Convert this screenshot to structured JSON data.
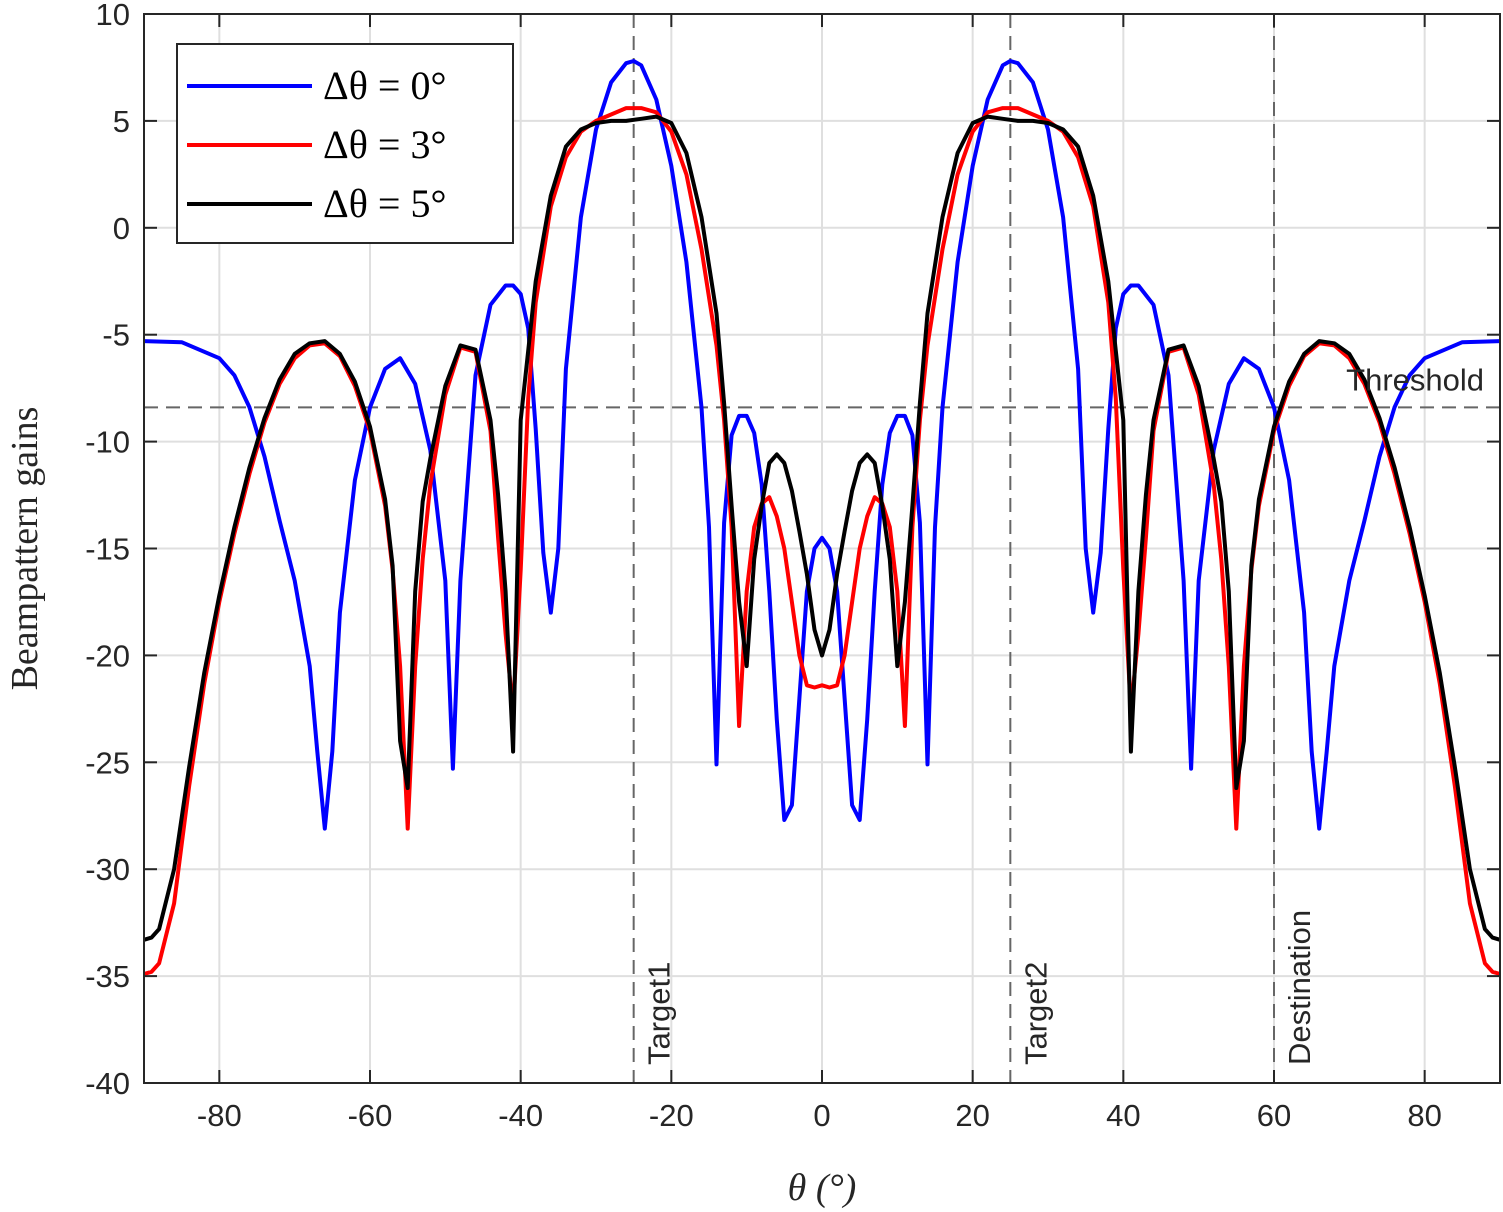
{
  "chart_data": {
    "type": "line",
    "title": "",
    "xlabel": "θ (°)",
    "ylabel": "Beampattern gains",
    "xlim": [
      -90,
      90
    ],
    "ylim": [
      -40,
      10
    ],
    "xticks": [
      -80,
      -60,
      -40,
      -20,
      0,
      20,
      40,
      60,
      80
    ],
    "xtick_labels": [
      "-80",
      "-60",
      "-40",
      "-20",
      "0",
      "20",
      "40",
      "60",
      "80"
    ],
    "yticks": [
      -40,
      -35,
      -30,
      -25,
      -20,
      -15,
      -10,
      -5,
      0,
      5,
      10
    ],
    "ytick_labels": [
      "-40",
      "-35",
      "-30",
      "-25",
      "-20",
      "-15",
      "-10",
      "-5",
      "0",
      "5",
      "10"
    ],
    "grid": true,
    "legend_position": "top-left",
    "threshold": {
      "y": -8.4,
      "label": "Threshold"
    },
    "vlines": [
      {
        "x": -25,
        "label": "Target1"
      },
      {
        "x": 25,
        "label": "Target2"
      },
      {
        "x": 60,
        "label": "Destination"
      }
    ],
    "series": [
      {
        "name": "Δθ = 0°",
        "color": "#0000ff",
        "x": [
          -90,
          -85,
          -80,
          -78,
          -76,
          -74,
          -72,
          -70,
          -68,
          -67,
          -66,
          -65,
          -64,
          -62,
          -60,
          -58,
          -56,
          -54,
          -52,
          -50,
          -49,
          -48,
          -46,
          -44,
          -42,
          -41,
          -40,
          -39,
          -38,
          -37,
          -36,
          -35,
          -34,
          -32,
          -30,
          -28,
          -26,
          -25,
          -24,
          -22,
          -20,
          -18,
          -16,
          -15,
          -14,
          -13,
          -12,
          -11,
          -10,
          -9,
          -8,
          -7,
          -6,
          -5,
          -4,
          -3,
          -2,
          -1,
          0,
          1,
          2,
          3,
          4,
          5,
          6,
          7,
          8,
          9,
          10,
          11,
          12,
          13,
          14,
          15,
          16,
          18,
          20,
          22,
          24,
          25,
          26,
          28,
          30,
          32,
          34,
          35,
          36,
          37,
          38,
          39,
          40,
          41,
          42,
          44,
          46,
          48,
          49,
          50,
          52,
          54,
          56,
          58,
          60,
          62,
          64,
          65,
          66,
          67,
          68,
          70,
          72,
          74,
          76,
          78,
          80,
          85,
          90
        ],
        "values": [
          -5.3,
          -5.35,
          -6.1,
          -6.9,
          -8.4,
          -10.7,
          -13.7,
          -16.5,
          -20.5,
          -24.5,
          -28.1,
          -24.5,
          -18,
          -11.8,
          -8.4,
          -6.6,
          -6.1,
          -7.3,
          -10.4,
          -16.5,
          -25.3,
          -16.5,
          -6.9,
          -3.6,
          -2.7,
          -2.7,
          -3.1,
          -4.7,
          -9.4,
          -15.2,
          -18,
          -15,
          -6.6,
          0.5,
          4.6,
          6.8,
          7.7,
          7.8,
          7.6,
          6,
          2.9,
          -1.6,
          -8.4,
          -14,
          -25.1,
          -13.8,
          -9.7,
          -8.8,
          -8.8,
          -9.6,
          -12,
          -17,
          -23,
          -27.7,
          -27,
          -22,
          -17,
          -15,
          -14.5,
          -15,
          -17,
          -22,
          -27,
          -27.7,
          -23,
          -17,
          -12,
          -9.6,
          -8.8,
          -8.8,
          -9.7,
          -13.8,
          -25.1,
          -14,
          -8.4,
          -1.6,
          2.9,
          6,
          7.6,
          7.8,
          7.7,
          6.8,
          4.6,
          0.5,
          -6.6,
          -15,
          -18,
          -15.2,
          -9.4,
          -4.7,
          -3.1,
          -2.7,
          -2.7,
          -3.6,
          -6.9,
          -16.5,
          -25.3,
          -16.5,
          -10.4,
          -7.3,
          -6.1,
          -6.6,
          -8.4,
          -11.8,
          -18,
          -24.5,
          -28.1,
          -24.5,
          -20.5,
          -16.5,
          -13.7,
          -10.7,
          -8.4,
          -6.9,
          -6.1,
          -5.35,
          -5.3
        ]
      },
      {
        "name": "Δθ = 3°",
        "color": "#ff0000",
        "x": [
          -90,
          -89,
          -88,
          -86,
          -84,
          -82,
          -80,
          -78,
          -76,
          -74,
          -72,
          -70,
          -68,
          -66,
          -64,
          -62,
          -60,
          -58,
          -57,
          -56,
          -55,
          -54,
          -53,
          -52,
          -50,
          -48,
          -46,
          -44,
          -43,
          -42,
          -41,
          -40,
          -39,
          -38,
          -36,
          -34,
          -32,
          -30,
          -28,
          -26,
          -24,
          -22,
          -20,
          -18,
          -16,
          -14,
          -13,
          -12,
          -11,
          -10,
          -9,
          -8,
          -7,
          -6,
          -5,
          -4,
          -3,
          -2,
          -1,
          0,
          1,
          2,
          3,
          4,
          5,
          6,
          7,
          8,
          9,
          10,
          11,
          12,
          13,
          14,
          16,
          18,
          20,
          22,
          24,
          26,
          28,
          30,
          32,
          34,
          36,
          38,
          39,
          40,
          41,
          42,
          43,
          44,
          46,
          48,
          50,
          52,
          53,
          54,
          55,
          56,
          57,
          58,
          60,
          62,
          64,
          66,
          68,
          70,
          72,
          74,
          76,
          78,
          80,
          82,
          84,
          86,
          88,
          89,
          90
        ],
        "values": [
          -34.9,
          -34.8,
          -34.4,
          -31.6,
          -26.1,
          -21.3,
          -17.5,
          -14.3,
          -11.5,
          -9.1,
          -7.3,
          -6.1,
          -5.5,
          -5.4,
          -6.0,
          -7.4,
          -9.5,
          -13.0,
          -16.0,
          -20.5,
          -28.1,
          -20.5,
          -15.5,
          -12.0,
          -7.8,
          -5.6,
          -5.8,
          -9.5,
          -14.5,
          -19.0,
          -22.6,
          -16.0,
          -8.0,
          -3.5,
          1.0,
          3.3,
          4.5,
          5.0,
          5.3,
          5.6,
          5.6,
          5.4,
          4.5,
          2.5,
          -1.0,
          -5.5,
          -9.0,
          -14.0,
          -23.3,
          -17.0,
          -14.0,
          -12.9,
          -12.6,
          -13.5,
          -15.0,
          -17.5,
          -20.0,
          -21.4,
          -21.5,
          -21.4,
          -21.5,
          -21.4,
          -20.0,
          -17.5,
          -15.0,
          -13.5,
          -12.6,
          -12.9,
          -14.0,
          -17.0,
          -23.3,
          -14.0,
          -9.0,
          -5.5,
          -1.0,
          2.5,
          4.5,
          5.4,
          5.6,
          5.6,
          5.3,
          5.0,
          4.5,
          3.3,
          1.0,
          -3.5,
          -8.0,
          -16.0,
          -22.6,
          -19.0,
          -14.5,
          -9.5,
          -5.8,
          -5.6,
          -7.8,
          -12.0,
          -15.5,
          -20.5,
          -28.1,
          -20.5,
          -16.0,
          -13.0,
          -9.5,
          -7.4,
          -6.0,
          -5.4,
          -5.5,
          -6.1,
          -7.3,
          -9.1,
          -11.5,
          -14.3,
          -17.5,
          -21.3,
          -26.1,
          -31.6,
          -34.4,
          -34.8,
          -34.9
        ]
      },
      {
        "name": "Δθ = 5°",
        "color": "#000000",
        "x": [
          -90,
          -89,
          -88,
          -86,
          -84,
          -82,
          -80,
          -78,
          -76,
          -74,
          -72,
          -70,
          -68,
          -66,
          -64,
          -62,
          -60,
          -58,
          -57,
          -56,
          -55,
          -54,
          -53,
          -52,
          -50,
          -48,
          -46,
          -44,
          -43,
          -42,
          -41,
          -40,
          -38,
          -36,
          -34,
          -32,
          -30,
          -28,
          -26,
          -24,
          -22,
          -20,
          -18,
          -16,
          -14,
          -13,
          -12,
          -11,
          -10,
          -9,
          -8,
          -7,
          -6,
          -5,
          -4,
          -3,
          -2,
          -1,
          0,
          1,
          2,
          3,
          4,
          5,
          6,
          7,
          8,
          9,
          10,
          11,
          12,
          13,
          14,
          16,
          18,
          20,
          22,
          24,
          26,
          28,
          30,
          32,
          34,
          36,
          38,
          40,
          41,
          42,
          43,
          44,
          46,
          48,
          50,
          52,
          53,
          54,
          55,
          56,
          57,
          58,
          60,
          62,
          64,
          66,
          68,
          70,
          72,
          74,
          76,
          78,
          80,
          82,
          84,
          86,
          88,
          89,
          90
        ],
        "values": [
          -33.3,
          -33.2,
          -32.8,
          -30.0,
          -25.2,
          -20.8,
          -17.2,
          -14.0,
          -11.2,
          -8.9,
          -7.1,
          -5.9,
          -5.4,
          -5.3,
          -5.9,
          -7.2,
          -9.3,
          -12.7,
          -15.8,
          -24.0,
          -26.2,
          -17.0,
          -12.8,
          -10.8,
          -7.4,
          -5.5,
          -5.7,
          -9.0,
          -12.5,
          -17.0,
          -24.5,
          -9.0,
          -2.5,
          1.5,
          3.8,
          4.6,
          4.9,
          5.0,
          5.0,
          5.1,
          5.2,
          4.9,
          3.5,
          0.5,
          -4.0,
          -8.2,
          -13.0,
          -17.5,
          -20.5,
          -15.5,
          -13.0,
          -11.0,
          -10.6,
          -11.0,
          -12.3,
          -14.2,
          -16.2,
          -18.8,
          -20.0,
          -18.8,
          -16.2,
          -14.2,
          -12.3,
          -11.0,
          -10.6,
          -11.0,
          -13.0,
          -15.5,
          -20.5,
          -17.5,
          -13.0,
          -8.2,
          -4.0,
          0.5,
          3.5,
          4.9,
          5.2,
          5.1,
          5.0,
          5.0,
          4.9,
          4.6,
          3.8,
          1.5,
          -2.5,
          -9.0,
          -24.5,
          -17.0,
          -12.5,
          -9.0,
          -5.7,
          -5.5,
          -7.4,
          -10.8,
          -12.8,
          -17.0,
          -26.2,
          -24.0,
          -15.8,
          -12.7,
          -9.3,
          -7.2,
          -5.9,
          -5.3,
          -5.4,
          -5.9,
          -7.1,
          -8.9,
          -11.2,
          -14.0,
          -17.2,
          -20.8,
          -25.2,
          -30.0,
          -32.8,
          -33.2,
          -33.3
        ]
      }
    ]
  }
}
